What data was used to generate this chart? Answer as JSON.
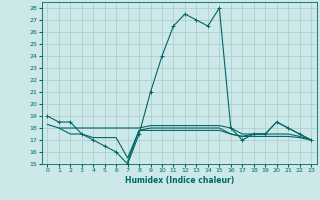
{
  "xlabel": "Humidex (Indice chaleur)",
  "bg_color": "#cce8e8",
  "line_color": "#006666",
  "grid_color": "#aacccc",
  "xlim": [
    -0.5,
    23.5
  ],
  "ylim": [
    15,
    28.5
  ],
  "yticks": [
    15,
    16,
    17,
    18,
    19,
    20,
    21,
    22,
    23,
    24,
    25,
    26,
    27,
    28
  ],
  "xticks": [
    0,
    1,
    2,
    3,
    4,
    5,
    6,
    7,
    8,
    9,
    10,
    11,
    12,
    13,
    14,
    15,
    16,
    17,
    18,
    19,
    20,
    21,
    22,
    23
  ],
  "line1_x": [
    0,
    1,
    2,
    3,
    4,
    5,
    6,
    7,
    8,
    9,
    10,
    11,
    12,
    13,
    14,
    15,
    16,
    17,
    18,
    19,
    20,
    21,
    22,
    23
  ],
  "line1_y": [
    19.0,
    18.5,
    18.5,
    17.5,
    17.0,
    16.5,
    16.0,
    15.0,
    17.5,
    21.0,
    24.0,
    26.5,
    27.5,
    27.0,
    26.5,
    28.0,
    18.0,
    17.0,
    17.5,
    17.5,
    18.5,
    18.0,
    17.5,
    17.0
  ],
  "line2_x": [
    0,
    1,
    2,
    3,
    4,
    5,
    6,
    7,
    8,
    9,
    10,
    11,
    12,
    13,
    14,
    15,
    16,
    17,
    18,
    19,
    20,
    21,
    22,
    23
  ],
  "line2_y": [
    18.3,
    18.0,
    18.0,
    18.0,
    18.0,
    18.0,
    18.0,
    18.0,
    18.0,
    18.2,
    18.2,
    18.2,
    18.2,
    18.2,
    18.2,
    18.2,
    18.0,
    17.5,
    17.5,
    17.5,
    18.5,
    18.0,
    17.5,
    17.0
  ],
  "line3_x": [
    1,
    2,
    3,
    4,
    5,
    6,
    7,
    8,
    9,
    10,
    11,
    12,
    13,
    14,
    15,
    16,
    17,
    18,
    19,
    20,
    21,
    22,
    23
  ],
  "line3_y": [
    18.0,
    17.5,
    17.5,
    17.2,
    17.2,
    17.2,
    15.5,
    17.8,
    17.8,
    17.8,
    17.8,
    17.8,
    17.8,
    17.8,
    17.8,
    17.5,
    17.3,
    17.3,
    17.3,
    17.3,
    17.3,
    17.2,
    17.0
  ],
  "line4_x": [
    7,
    8,
    9,
    10,
    11,
    12,
    13,
    14,
    15,
    16,
    17,
    18,
    19,
    20,
    21,
    22,
    23
  ],
  "line4_y": [
    15.2,
    17.8,
    18.0,
    18.0,
    18.0,
    18.0,
    18.0,
    18.0,
    18.0,
    17.5,
    17.3,
    17.5,
    17.5,
    17.5,
    17.5,
    17.3,
    17.0
  ]
}
